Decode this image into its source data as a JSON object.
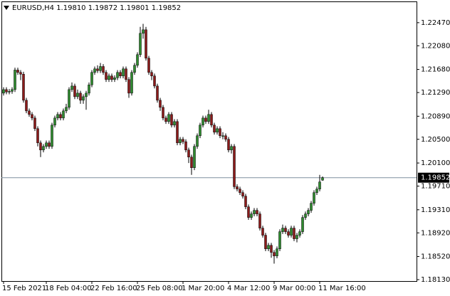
{
  "chart_data": {
    "type": "candlestick",
    "title": "EURUSD,H4  1.19810 1.19872 1.19801 1.19852",
    "up_color": "#2e8b2e",
    "down_color": "#8b1a1a",
    "wick_color": "#000000",
    "ylim": [
      1.18106,
      1.22829
    ],
    "yticks": [
      {
        "value": 1.2247,
        "label": "1.22470"
      },
      {
        "value": 1.2208,
        "label": "1.22080"
      },
      {
        "value": 1.2168,
        "label": "1.21680"
      },
      {
        "value": 1.2129,
        "label": "1.21290"
      },
      {
        "value": 1.2089,
        "label": "1.20890"
      },
      {
        "value": 1.205,
        "label": "1.20500"
      },
      {
        "value": 1.201,
        "label": "1.20100"
      },
      {
        "value": 1.1971,
        "label": "1.19710"
      },
      {
        "value": 1.1931,
        "label": "1.19310"
      },
      {
        "value": 1.1892,
        "label": "1.18920"
      },
      {
        "value": 1.1852,
        "label": "1.18520"
      },
      {
        "value": 1.1813,
        "label": "1.18130"
      }
    ],
    "current_price": 1.19852,
    "categories": [
      "15 Feb 2021",
      null,
      null,
      null,
      null,
      null,
      null,
      null,
      null,
      null,
      null,
      null,
      null,
      null,
      null,
      "18 Feb 04:00",
      null,
      null,
      null,
      null,
      null,
      null,
      null,
      null,
      null,
      null,
      null,
      null,
      null,
      null,
      null,
      "22 Feb 16:00",
      null,
      null,
      null,
      null,
      null,
      null,
      null,
      null,
      null,
      null,
      null,
      null,
      null,
      null,
      null,
      "25 Feb 08:00",
      null,
      null,
      null,
      null,
      null,
      null,
      null,
      null,
      null,
      null,
      null,
      null,
      null,
      null,
      null,
      "1 Mar 20:00",
      null,
      null,
      null,
      null,
      null,
      null,
      null,
      null,
      null,
      null,
      null,
      null,
      null,
      null,
      null,
      "4 Mar 12:00",
      null,
      null,
      null,
      null,
      null,
      null,
      null,
      null,
      null,
      null,
      null,
      null,
      null,
      null,
      null,
      "9 Mar 00:00",
      null,
      null,
      null,
      null,
      null,
      null,
      null,
      null,
      null,
      null,
      null,
      null,
      null,
      null,
      null,
      "11 Mar 16:00",
      null
    ],
    "open": [
      1.2128,
      1.2134,
      1.213,
      1.2131,
      1.2134,
      1.2167,
      1.2163,
      1.216,
      1.2116,
      1.2098,
      1.2092,
      1.2086,
      1.2068,
      1.2044,
      1.2032,
      1.2038,
      1.2044,
      1.2038,
      1.2074,
      1.2086,
      1.2092,
      1.2086,
      1.2098,
      1.2104,
      1.2134,
      1.214,
      1.2122,
      1.2128,
      1.2116,
      1.2122,
      1.2128,
      1.2142,
      1.2163,
      1.2169,
      1.2166,
      1.2173,
      1.2163,
      1.2151,
      1.2157,
      1.2151,
      1.2154,
      1.2163,
      1.2157,
      1.2169,
      1.2151,
      1.2128,
      1.2163,
      1.2175,
      1.2193,
      1.2229,
      1.2235,
      1.2187,
      1.2163,
      1.2157,
      1.214,
      1.2116,
      1.2104,
      1.2086,
      1.208,
      1.2092,
      1.2074,
      1.208,
      1.2044,
      1.205,
      1.2046,
      1.2032,
      1.202,
      1.2002,
      1.2038,
      1.2056,
      1.2074,
      1.2086,
      1.208,
      1.2092,
      1.2074,
      1.2062,
      1.2068,
      1.2056,
      1.2056,
      1.205,
      1.2032,
      1.2038,
      1.197,
      1.1966,
      1.196,
      1.1954,
      1.1936,
      1.1918,
      1.1924,
      1.193,
      1.1924,
      1.19,
      1.1888,
      1.1865,
      1.1871,
      1.1859,
      1.1853,
      1.1865,
      1.1894,
      1.19,
      1.1894,
      1.1888,
      1.19,
      1.1882,
      1.1888,
      1.1894,
      1.1918,
      1.1924,
      1.193,
      1.1942,
      1.196,
      1.1966,
      1.1981
    ],
    "high": [
      1.2138,
      1.2138,
      1.2135,
      1.2138,
      1.2171,
      1.2171,
      1.2167,
      1.2164,
      1.212,
      1.2102,
      1.2096,
      1.209,
      1.2072,
      1.2048,
      1.2042,
      1.2048,
      1.2048,
      1.2078,
      1.209,
      1.2096,
      1.2096,
      1.2102,
      1.211,
      1.2138,
      1.2146,
      1.2144,
      1.2134,
      1.2132,
      1.2126,
      1.2132,
      1.2146,
      1.2167,
      1.2173,
      1.2175,
      1.2179,
      1.2177,
      1.2167,
      1.2161,
      1.2161,
      1.2158,
      1.2167,
      1.2167,
      1.2173,
      1.2173,
      1.2155,
      1.2167,
      1.2179,
      1.2197,
      1.224,
      1.2245,
      1.224,
      1.2191,
      1.2167,
      1.2161,
      1.2144,
      1.212,
      1.2108,
      1.209,
      1.2096,
      1.2096,
      1.2084,
      1.2084,
      1.2054,
      1.2054,
      1.205,
      1.2036,
      1.2024,
      1.2042,
      1.206,
      1.2078,
      1.209,
      1.209,
      1.21,
      1.2096,
      1.2078,
      1.2072,
      1.2072,
      1.2062,
      1.206,
      1.2054,
      1.2042,
      1.2042,
      1.1974,
      1.197,
      1.1964,
      1.1958,
      1.194,
      1.1928,
      1.1934,
      1.1934,
      1.1928,
      1.1904,
      1.1892,
      1.1875,
      1.1875,
      1.1863,
      1.1869,
      1.1898,
      1.1906,
      1.1904,
      1.1898,
      1.1904,
      1.1904,
      1.1892,
      1.1898,
      1.1922,
      1.1928,
      1.1934,
      1.1946,
      1.1964,
      1.197,
      1.199,
      1.19872
    ],
    "low": [
      1.2124,
      1.2126,
      1.2126,
      1.2127,
      1.213,
      1.2159,
      1.215,
      1.2112,
      1.2094,
      1.2088,
      1.2082,
      1.2064,
      1.2038,
      1.202,
      1.2028,
      1.2034,
      1.2034,
      1.2034,
      1.207,
      1.2082,
      1.2082,
      1.2082,
      1.2094,
      1.21,
      1.213,
      1.2118,
      1.2118,
      1.211,
      1.211,
      1.21,
      1.2124,
      1.2138,
      1.2159,
      1.2162,
      1.2162,
      1.2159,
      1.2147,
      1.2147,
      1.2147,
      1.2147,
      1.215,
      1.2153,
      1.2153,
      1.2147,
      1.212,
      1.2124,
      1.2159,
      1.2171,
      1.2189,
      1.222,
      1.2183,
      1.2159,
      1.215,
      1.2136,
      1.2112,
      1.2098,
      1.2082,
      1.2076,
      1.2076,
      1.207,
      1.207,
      1.204,
      1.204,
      1.2042,
      1.2028,
      1.201,
      1.199,
      1.1998,
      1.2034,
      1.2052,
      1.207,
      1.2076,
      1.2076,
      1.207,
      1.2058,
      1.2058,
      1.2052,
      1.205,
      1.2046,
      1.2028,
      1.2026,
      1.1966,
      1.1962,
      1.1956,
      1.195,
      1.1932,
      1.1914,
      1.1914,
      1.192,
      1.192,
      1.1896,
      1.1884,
      1.1861,
      1.1861,
      1.185,
      1.184,
      1.1849,
      1.1861,
      1.189,
      1.189,
      1.1884,
      1.1884,
      1.1878,
      1.1876,
      1.1884,
      1.189,
      1.1914,
      1.192,
      1.1926,
      1.1938,
      1.1956,
      1.1962,
      1.19801
    ],
    "close": [
      1.2134,
      1.213,
      1.2131,
      1.2134,
      1.2167,
      1.2163,
      1.216,
      1.2116,
      1.2098,
      1.2092,
      1.2086,
      1.2068,
      1.2044,
      1.2032,
      1.2038,
      1.2044,
      1.2038,
      1.2074,
      1.2086,
      1.2092,
      1.2086,
      1.2098,
      1.2104,
      1.2134,
      1.214,
      1.2122,
      1.2128,
      1.2116,
      1.2122,
      1.2128,
      1.2142,
      1.2163,
      1.2169,
      1.2166,
      1.2173,
      1.2163,
      1.2151,
      1.2157,
      1.2151,
      1.2154,
      1.2163,
      1.2157,
      1.2169,
      1.2151,
      1.2128,
      1.2163,
      1.2175,
      1.2193,
      1.2229,
      1.2235,
      1.2187,
      1.2163,
      1.2157,
      1.214,
      1.2116,
      1.2104,
      1.2086,
      1.208,
      1.2092,
      1.2074,
      1.208,
      1.2044,
      1.205,
      1.2046,
      1.2032,
      1.202,
      1.2002,
      1.2038,
      1.2056,
      1.2074,
      1.2086,
      1.208,
      1.2092,
      1.2074,
      1.2062,
      1.2068,
      1.2056,
      1.2056,
      1.205,
      1.2032,
      1.2038,
      1.197,
      1.1966,
      1.196,
      1.1954,
      1.1936,
      1.1918,
      1.1924,
      1.193,
      1.1924,
      1.19,
      1.1888,
      1.1865,
      1.1871,
      1.1859,
      1.1853,
      1.1865,
      1.1894,
      1.19,
      1.1894,
      1.1888,
      1.19,
      1.1882,
      1.1888,
      1.1894,
      1.1918,
      1.1924,
      1.193,
      1.1942,
      1.196,
      1.1966,
      1.1978,
      1.19852
    ]
  }
}
